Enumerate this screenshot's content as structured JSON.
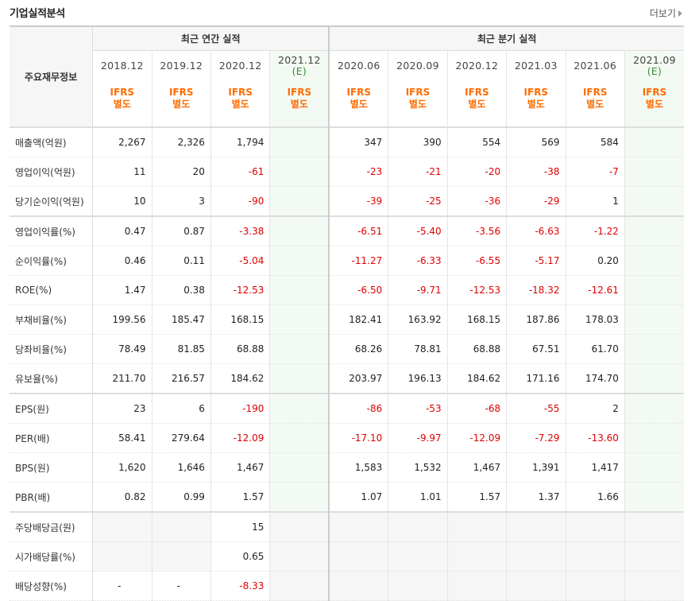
{
  "header": {
    "title": "기업실적분석",
    "more_label": "더보기"
  },
  "table": {
    "row_label_header": "주요재무정보",
    "group_annual": "최근 연간 실적",
    "group_quarter": "최근 분기 실적",
    "periods": [
      {
        "label": "2018.12",
        "est": "",
        "ifrs": "IFRS",
        "ifrs2": "별도"
      },
      {
        "label": "2019.12",
        "est": "",
        "ifrs": "IFRS",
        "ifrs2": "별도"
      },
      {
        "label": "2020.12",
        "est": "",
        "ifrs": "IFRS",
        "ifrs2": "별도"
      },
      {
        "label": "2021.12",
        "est": "(E)",
        "ifrs": "IFRS",
        "ifrs2": "별도"
      },
      {
        "label": "2020.06",
        "est": "",
        "ifrs": "IFRS",
        "ifrs2": "별도"
      },
      {
        "label": "2020.09",
        "est": "",
        "ifrs": "IFRS",
        "ifrs2": "별도"
      },
      {
        "label": "2020.12",
        "est": "",
        "ifrs": "IFRS",
        "ifrs2": "별도"
      },
      {
        "label": "2021.03",
        "est": "",
        "ifrs": "IFRS",
        "ifrs2": "별도"
      },
      {
        "label": "2021.06",
        "est": "",
        "ifrs": "IFRS",
        "ifrs2": "별도"
      },
      {
        "label": "2021.09",
        "est": "(E)",
        "ifrs": "IFRS",
        "ifrs2": "별도"
      }
    ],
    "rows": [
      {
        "label": "매출액(억원)",
        "values": [
          "2,267",
          "2,326",
          "1,794",
          "",
          "347",
          "390",
          "554",
          "569",
          "584",
          ""
        ]
      },
      {
        "label": "영업이익(억원)",
        "values": [
          "11",
          "20",
          "-61",
          "",
          "-23",
          "-21",
          "-20",
          "-38",
          "-7",
          ""
        ]
      },
      {
        "label": "당기순이익(억원)",
        "values": [
          "10",
          "3",
          "-90",
          "",
          "-39",
          "-25",
          "-36",
          "-29",
          "1",
          ""
        ]
      },
      {
        "label": "영업이익률(%)",
        "values": [
          "0.47",
          "0.87",
          "-3.38",
          "",
          "-6.51",
          "-5.40",
          "-3.56",
          "-6.63",
          "-1.22",
          ""
        ]
      },
      {
        "label": "순이익률(%)",
        "values": [
          "0.46",
          "0.11",
          "-5.04",
          "",
          "-11.27",
          "-6.33",
          "-6.55",
          "-5.17",
          "0.20",
          ""
        ]
      },
      {
        "label": "ROE(%)",
        "values": [
          "1.47",
          "0.38",
          "-12.53",
          "",
          "-6.50",
          "-9.71",
          "-12.53",
          "-18.32",
          "-12.61",
          ""
        ]
      },
      {
        "label": "부채비율(%)",
        "values": [
          "199.56",
          "185.47",
          "168.15",
          "",
          "182.41",
          "163.92",
          "168.15",
          "187.86",
          "178.03",
          ""
        ]
      },
      {
        "label": "당좌비율(%)",
        "values": [
          "78.49",
          "81.85",
          "68.88",
          "",
          "68.26",
          "78.81",
          "68.88",
          "67.51",
          "61.70",
          ""
        ]
      },
      {
        "label": "유보율(%)",
        "values": [
          "211.70",
          "216.57",
          "184.62",
          "",
          "203.97",
          "196.13",
          "184.62",
          "171.16",
          "174.70",
          ""
        ]
      },
      {
        "label": "EPS(원)",
        "values": [
          "23",
          "6",
          "-190",
          "",
          "-86",
          "-53",
          "-68",
          "-55",
          "2",
          ""
        ]
      },
      {
        "label": "PER(배)",
        "values": [
          "58.41",
          "279.64",
          "-12.09",
          "",
          "-17.10",
          "-9.97",
          "-12.09",
          "-7.29",
          "-13.60",
          ""
        ]
      },
      {
        "label": "BPS(원)",
        "values": [
          "1,620",
          "1,646",
          "1,467",
          "",
          "1,583",
          "1,532",
          "1,467",
          "1,391",
          "1,417",
          ""
        ]
      },
      {
        "label": "PBR(배)",
        "values": [
          "0.82",
          "0.99",
          "1.57",
          "",
          "1.07",
          "1.01",
          "1.57",
          "1.37",
          "1.66",
          ""
        ]
      },
      {
        "label": "주당배당금(원)",
        "values": [
          "",
          "",
          "15",
          "",
          "",
          "",
          "",
          "",
          "",
          ""
        ]
      },
      {
        "label": "시가배당률(%)",
        "values": [
          "",
          "",
          "0.65",
          "",
          "",
          "",
          "",
          "",
          "",
          ""
        ]
      },
      {
        "label": "배당성향(%)",
        "values": [
          "-",
          "-",
          "-8.33",
          "",
          "",
          "",
          "",
          "",
          "",
          ""
        ]
      }
    ]
  }
}
